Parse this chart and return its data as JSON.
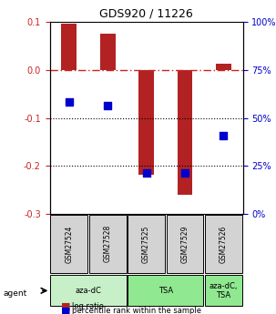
{
  "title": "GDS920 / 11226",
  "samples": [
    "GSM27524",
    "GSM27528",
    "GSM27525",
    "GSM27529",
    "GSM27526"
  ],
  "log_ratios": [
    0.097,
    0.075,
    -0.218,
    -0.26,
    0.013
  ],
  "percentile_ranks": [
    0.585,
    0.565,
    0.215,
    0.215,
    0.41
  ],
  "ylim_left": [
    -0.3,
    0.1
  ],
  "ylim_right": [
    0,
    100
  ],
  "yticks_left": [
    -0.3,
    -0.2,
    -0.1,
    0.0,
    0.1
  ],
  "yticks_right": [
    0,
    25,
    50,
    75,
    100
  ],
  "bar_color": "#b22222",
  "dot_color": "#0000cd",
  "zero_line_color": "#cc2222",
  "dotted_line_color": "#000000",
  "agent_groups": [
    {
      "label": "aza-dC",
      "start": 0,
      "end": 2,
      "color": "#c8f0c8"
    },
    {
      "label": "TSA",
      "start": 2,
      "end": 4,
      "color": "#90e890"
    },
    {
      "label": "aza-dC,\nTSA",
      "start": 4,
      "end": 5,
      "color": "#90e890"
    }
  ],
  "legend_items": [
    {
      "color": "#b22222",
      "label": "log ratio"
    },
    {
      "color": "#0000cd",
      "label": "percentile rank within the sample"
    }
  ],
  "bar_width": 0.4
}
